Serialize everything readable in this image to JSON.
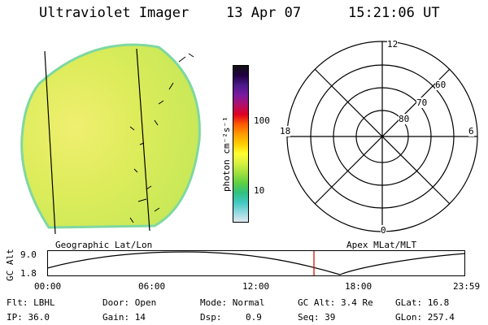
{
  "header": {
    "title": "Ultraviolet Imager",
    "date": "13 Apr 07",
    "time": "15:21:06 UT"
  },
  "colorbar": {
    "unit": "photon cm⁻²s⁻¹",
    "ticks": [
      "100",
      "10"
    ],
    "colors": [
      "#111111",
      "#220044",
      "#4b1a8a",
      "#7a1aa0",
      "#b0106a",
      "#e00020",
      "#ff5a00",
      "#ff9a00",
      "#ffcc00",
      "#ffff30",
      "#d8f040",
      "#a0e040",
      "#60d040",
      "#30c080",
      "#40c8c0",
      "#90d8e0",
      "#e0e8f0"
    ]
  },
  "polar": {
    "labels": [
      "12",
      "18",
      "6",
      "0",
      "60",
      "70",
      "80"
    ]
  },
  "left_caption": "Geographic Lat/Lon",
  "right_caption": "Apex MLat/MLT",
  "orbit": {
    "ylabel": "GC Alt",
    "yticks": [
      "9.0",
      "1.8"
    ],
    "xticks": [
      "00:00",
      "06:00",
      "12:00",
      "18:00",
      "23:59"
    ],
    "marker_time": "15:21"
  },
  "info": {
    "flt": "Flt: LBHL",
    "door": "Door: Open",
    "mode": "Mode: Normal",
    "gcalt": "GC Alt: 3.4 Re",
    "glat": "GLat:  16.8",
    "ip": "IP: 36.0",
    "gain": "Gain: 14",
    "dsp_label": "Dsp:",
    "dsp_value": "0.9",
    "seq": "Seq: 39",
    "glon": "GLon: 257.4"
  },
  "accent_colors": {
    "disk_fill": "#d9ec5a",
    "disk_edge": "#7fd8a0",
    "marker": "#cc0000"
  }
}
